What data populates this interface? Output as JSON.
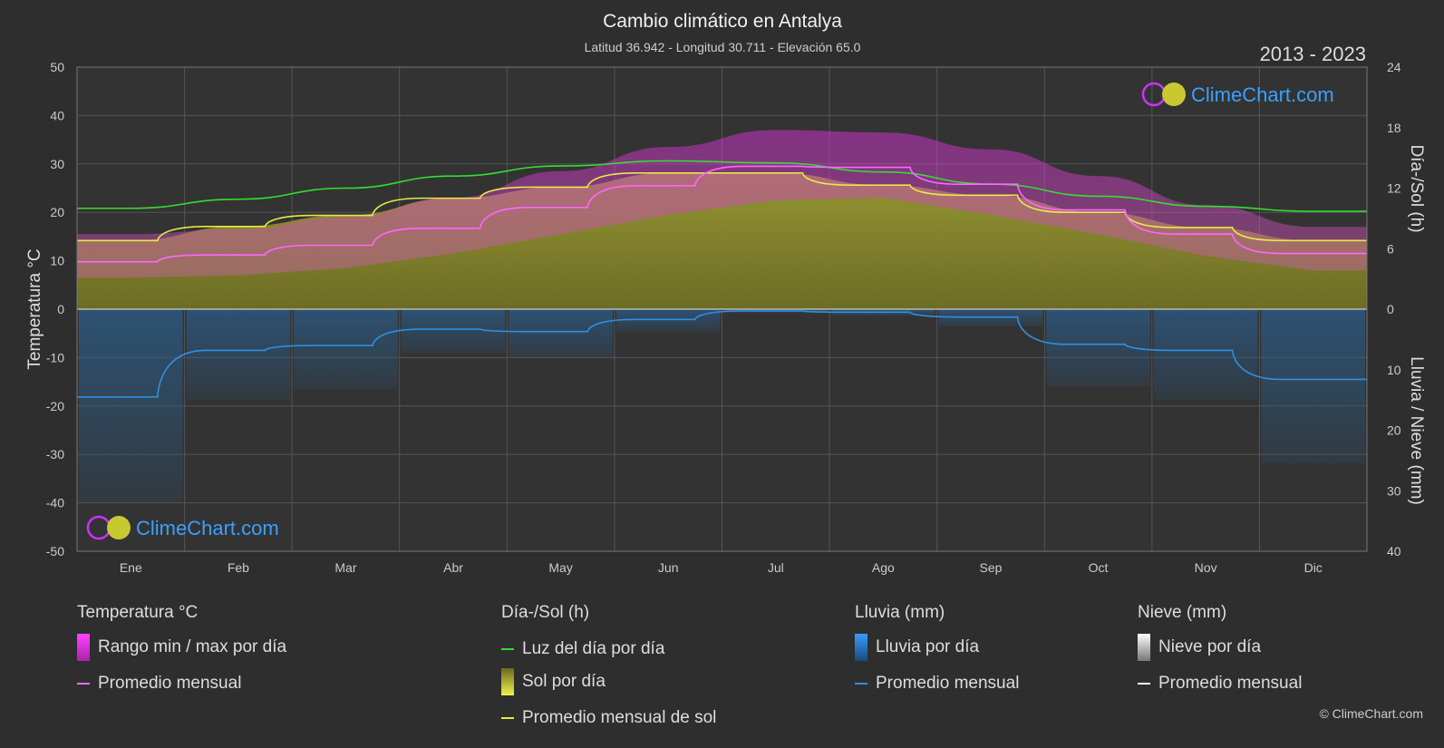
{
  "title": "Cambio climático en Antalya",
  "subtitle": "Latitud 36.942 - Longitud 30.711 - Elevación 65.0",
  "year_range": "2013 - 2023",
  "watermark": "ClimeChart.com",
  "copyright": "© ClimeChart.com",
  "colors": {
    "background": "#2e2e2e",
    "temp_range": "#cc33cc",
    "temp_avg": "#ff66ff",
    "daylight": "#33dd33",
    "sunshine_fill": "#8f8f30",
    "sunshine_avg": "#e8e84a",
    "rain": "#2e6da4",
    "rain_avg": "#2f8fe0",
    "snow_avg": "#ffffff",
    "logo_text": "#3aa0ff"
  },
  "chart_data": {
    "type": "line",
    "categories": [
      "Ene",
      "Feb",
      "Mar",
      "Abr",
      "May",
      "Jun",
      "Jul",
      "Ago",
      "Sep",
      "Oct",
      "Nov",
      "Dic"
    ],
    "y_left": {
      "label": "Temperatura °C",
      "range": [
        -50,
        50
      ],
      "ticks": [
        50,
        40,
        30,
        20,
        10,
        0,
        -10,
        -20,
        -30,
        -40,
        -50
      ]
    },
    "y_right_top": {
      "label": "Día-/Sol (h)",
      "range": [
        0,
        24
      ],
      "ticks": [
        24,
        18,
        12,
        6,
        0
      ]
    },
    "y_right_bottom": {
      "label": "Lluvia / Nieve (mm)",
      "range": [
        0,
        40
      ],
      "ticks": [
        0,
        10,
        20,
        30,
        40
      ]
    },
    "grid": true,
    "series": [
      {
        "name": "Luz del día por día",
        "axis": "hours",
        "values": [
          10.0,
          10.9,
          12.0,
          13.2,
          14.2,
          14.7,
          14.5,
          13.6,
          12.4,
          11.2,
          10.2,
          9.7
        ]
      },
      {
        "name": "Promedio mensual de sol",
        "axis": "hours",
        "values": [
          6.8,
          8.2,
          9.3,
          11.0,
          12.1,
          13.5,
          13.5,
          12.3,
          11.3,
          9.6,
          8.1,
          6.8
        ]
      },
      {
        "name": "Promedio mensual",
        "axis": "temperature",
        "values": [
          9.8,
          11.2,
          13.2,
          16.7,
          21.0,
          25.5,
          29.5,
          29.3,
          25.8,
          20.5,
          15.5,
          11.5
        ]
      },
      {
        "name": "Promedio mensual",
        "axis": "rain_mm",
        "values": [
          14.5,
          6.8,
          6.0,
          3.3,
          3.7,
          1.7,
          0.3,
          0.5,
          1.3,
          5.8,
          6.8,
          11.6
        ]
      },
      {
        "name": "Rango min / max por día",
        "axis": "temperature",
        "min": [
          6.5,
          7.0,
          8.5,
          11.5,
          15.5,
          19.5,
          22.5,
          23.0,
          19.5,
          15.5,
          11.0,
          8.0
        ],
        "max": [
          15.5,
          16.5,
          19.0,
          23.0,
          28.5,
          33.5,
          37.0,
          36.5,
          33.0,
          27.5,
          21.5,
          17.0
        ]
      }
    ]
  },
  "legend": {
    "groups": [
      {
        "title": "Temperatura °C",
        "items": [
          {
            "label": "Rango min / max por día",
            "swatch": "box-temp"
          },
          {
            "label": "Promedio mensual",
            "swatch": "line-temp"
          }
        ]
      },
      {
        "title": "Día-/Sol (h)",
        "items": [
          {
            "label": "Luz del día por día",
            "swatch": "line-daylight"
          },
          {
            "label": "Sol por día",
            "swatch": "box-sun"
          },
          {
            "label": "Promedio mensual de sol",
            "swatch": "line-sun"
          }
        ]
      },
      {
        "title": "Lluvia (mm)",
        "items": [
          {
            "label": "Lluvia por día",
            "swatch": "box-rain"
          },
          {
            "label": "Promedio mensual",
            "swatch": "line-rain"
          }
        ]
      },
      {
        "title": "Nieve (mm)",
        "items": [
          {
            "label": "Nieve por día",
            "swatch": "box-snow"
          },
          {
            "label": "Promedio mensual",
            "swatch": "line-snow"
          }
        ]
      }
    ]
  }
}
